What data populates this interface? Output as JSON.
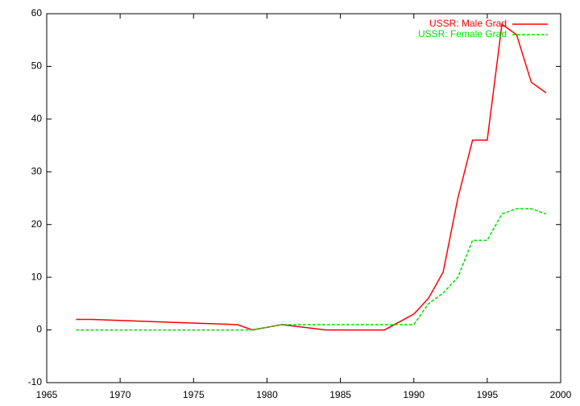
{
  "chart_data": {
    "type": "line",
    "xlim": [
      1965,
      2000
    ],
    "xticks": [
      1965,
      1970,
      1975,
      1980,
      1985,
      1990,
      1995,
      2000
    ],
    "ylim": [
      -10,
      60
    ],
    "yticks": [
      -10,
      0,
      10,
      20,
      30,
      40,
      50,
      60
    ],
    "legend": "top-right",
    "series": [
      {
        "name": "USSR: Male Grad",
        "color": "#ff0000",
        "dash": false,
        "x": [
          1967,
          1968,
          1978,
          1979,
          1981,
          1984,
          1988,
          1990,
          1991,
          1992,
          1993,
          1994,
          1995,
          1996,
          1997,
          1998,
          1999
        ],
        "values": [
          2,
          2,
          1,
          0,
          1,
          0,
          0,
          3,
          6,
          11,
          25,
          36,
          36,
          58,
          56,
          47,
          45
        ]
      },
      {
        "name": "USSR: Female Grad",
        "color": "#00dd00",
        "dash": true,
        "x": [
          1967,
          1979,
          1981,
          1990,
          1991,
          1992,
          1993,
          1994,
          1995,
          1996,
          1997,
          1998,
          1999
        ],
        "values": [
          0,
          0,
          1,
          1,
          5,
          7,
          10,
          17,
          17,
          22,
          23,
          23,
          22
        ]
      }
    ]
  }
}
